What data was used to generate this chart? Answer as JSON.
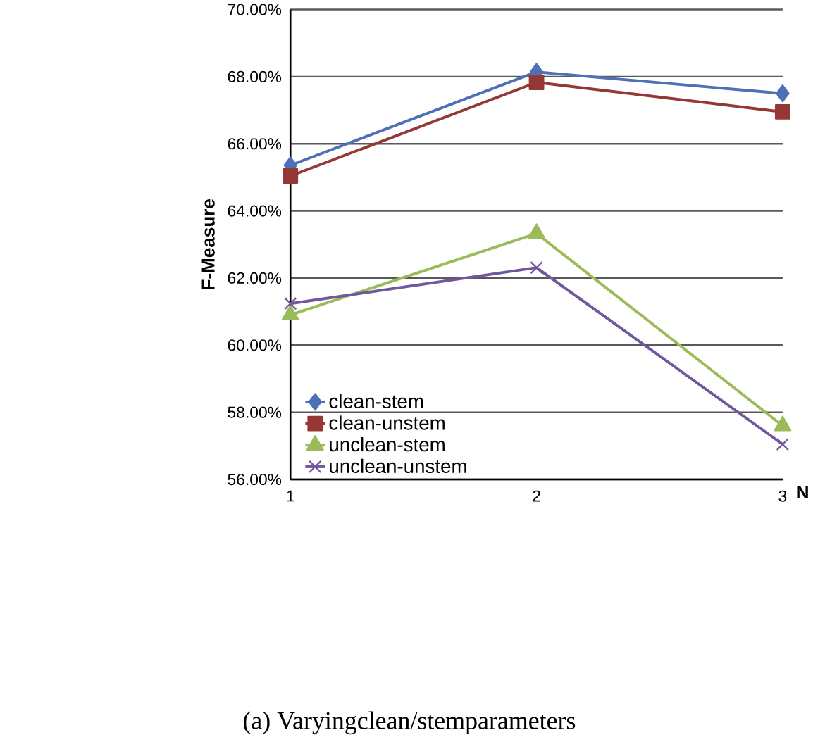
{
  "chart_data": {
    "type": "line",
    "xlabel": "N",
    "ylabel": "F-Measure",
    "x": [
      1,
      2,
      3
    ],
    "xlim": [
      1,
      3
    ],
    "xticks": [
      1,
      2,
      3
    ],
    "ylim": [
      56,
      70
    ],
    "yticks": [
      {
        "value": 56,
        "label": "56.00%"
      },
      {
        "value": 58,
        "label": "58.00%"
      },
      {
        "value": 60,
        "label": "60.00%"
      },
      {
        "value": 62,
        "label": "62.00%"
      },
      {
        "value": 64,
        "label": "64.00%"
      },
      {
        "value": 66,
        "label": "66.00%"
      },
      {
        "value": 68,
        "label": "68.00%"
      },
      {
        "value": 70,
        "label": "70.00%"
      }
    ],
    "grid": "y",
    "legend": "bottom left",
    "series": [
      {
        "name": "clean-stem",
        "color": "#4f6fb7",
        "marker": "diamond",
        "values": [
          65.36,
          68.14,
          67.5
        ]
      },
      {
        "name": "clean-unstem",
        "color": "#953735",
        "marker": "square",
        "values": [
          65.04,
          67.83,
          66.95
        ]
      },
      {
        "name": "unclean-stem",
        "color": "#9bbb59",
        "marker": "triangle",
        "values": [
          60.9,
          63.33,
          57.6
        ]
      },
      {
        "name": "unclean-unstem",
        "color": "#71589c",
        "marker": "cross",
        "values": [
          61.24,
          62.31,
          57.05
        ]
      }
    ],
    "annotations": [
      "(a) Varyingclean/stemparameters"
    ]
  }
}
